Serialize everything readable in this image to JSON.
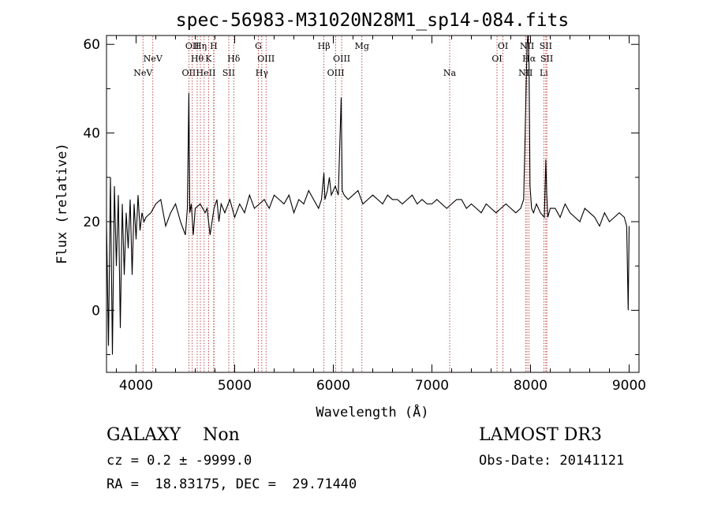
{
  "chart_data": {
    "type": "line",
    "title": "spec-56983-M31020N28M1_sp14-084.fits",
    "xlabel": "Wavelength (Å)",
    "ylabel": "Flux (relative)",
    "xlim": [
      3700,
      9100
    ],
    "ylim": [
      -14,
      62
    ],
    "xticks": [
      4000,
      5000,
      6000,
      7000,
      8000,
      9000
    ],
    "xtick_labels": [
      "4000",
      "5000",
      "6000",
      "7000",
      "8000",
      "9000"
    ],
    "yticks": [
      0,
      20,
      40,
      60
    ],
    "ytick_labels": [
      "0",
      "20",
      "40",
      "60"
    ],
    "grid": false,
    "series": [
      {
        "name": "spectrum",
        "x": [
          3700,
          3720,
          3740,
          3760,
          3780,
          3800,
          3820,
          3840,
          3860,
          3880,
          3900,
          3920,
          3940,
          3960,
          3980,
          4000,
          4020,
          4040,
          4060,
          4080,
          4100,
          4150,
          4200,
          4250,
          4300,
          4350,
          4400,
          4450,
          4500,
          4520,
          4535,
          4545,
          4560,
          4580,
          4600,
          4650,
          4700,
          4720,
          4750,
          4790,
          4820,
          4840,
          4862,
          4900,
          4950,
          5000,
          5050,
          5100,
          5150,
          5200,
          5250,
          5300,
          5350,
          5400,
          5450,
          5500,
          5550,
          5600,
          5650,
          5700,
          5750,
          5800,
          5850,
          5880,
          5905,
          5915,
          5940,
          5960,
          5980,
          6000,
          6020,
          6050,
          6080,
          6090,
          6110,
          6150,
          6200,
          6250,
          6300,
          6350,
          6400,
          6450,
          6500,
          6550,
          6600,
          6650,
          6700,
          6750,
          6800,
          6850,
          6900,
          6950,
          7000,
          7050,
          7100,
          7150,
          7200,
          7250,
          7300,
          7350,
          7400,
          7450,
          7500,
          7550,
          7600,
          7650,
          7700,
          7750,
          7800,
          7850,
          7900,
          7930,
          7950,
          7965,
          7975,
          7985,
          7995,
          8010,
          8030,
          8060,
          8100,
          8140,
          8155,
          8165,
          8175,
          8200,
          8250,
          8300,
          8350,
          8400,
          8450,
          8500,
          8550,
          8600,
          8650,
          8700,
          8750,
          8800,
          8850,
          8900,
          8950,
          8975,
          8990,
          9000
        ],
        "y": [
          20,
          -8,
          30,
          -10,
          28,
          10,
          26,
          -4,
          24,
          8,
          22,
          14,
          25,
          8,
          24,
          16,
          26,
          18,
          22,
          20,
          21,
          22,
          24,
          25,
          19,
          22,
          24,
          20,
          17,
          23,
          49,
          22,
          24,
          17,
          23,
          24,
          22,
          23,
          17,
          23,
          25,
          20,
          24,
          22,
          25,
          21,
          24,
          22,
          26,
          23,
          24,
          25,
          23,
          26,
          25,
          24,
          26,
          22,
          25,
          24,
          27,
          25,
          23,
          25,
          31,
          25,
          27,
          30,
          26,
          27,
          28,
          26,
          48,
          27,
          26,
          25,
          26,
          27,
          24,
          25,
          26,
          25,
          24,
          26,
          25,
          25,
          24,
          25,
          26,
          24,
          25,
          24,
          24,
          25,
          24,
          23,
          24,
          25,
          25,
          23,
          24,
          23,
          22,
          24,
          23,
          22,
          23,
          24,
          23,
          22,
          23,
          25,
          45,
          60,
          62,
          55,
          28,
          23,
          22,
          24,
          22,
          21,
          34,
          26,
          21,
          23,
          23,
          21,
          24,
          22,
          21,
          20,
          23,
          22,
          21,
          19,
          22,
          20,
          21,
          22,
          21,
          19,
          0,
          19
        ]
      }
    ],
    "lines": [
      {
        "wavelength": 4070,
        "label": "NeV",
        "row": 3
      },
      {
        "wavelength": 4170,
        "label": "NeV",
        "row": 2
      },
      {
        "wavelength": 4535,
        "label": "OII",
        "row": 3
      },
      {
        "wavelength": 4570,
        "label": "OII",
        "row": 1
      },
      {
        "wavelength": 4620,
        "label": "Hθ",
        "row": 2
      },
      {
        "wavelength": 4652,
        "label": "Hη",
        "row": 1
      },
      {
        "wavelength": 4690,
        "label": "HeI",
        "row": 3
      },
      {
        "wavelength": 4735,
        "label": "K",
        "row": 2
      },
      {
        "wavelength": 4787,
        "label": "H",
        "row": 1
      },
      {
        "wavelength": 4790,
        "label": "I",
        "row": 3
      },
      {
        "wavelength": 4940,
        "label": "SII",
        "row": 3
      },
      {
        "wavelength": 4990,
        "label": "Hδ",
        "row": 2
      },
      {
        "wavelength": 5240,
        "label": "G",
        "row": 1
      },
      {
        "wavelength": 5275,
        "label": "Hγ",
        "row": 3
      },
      {
        "wavelength": 5318,
        "label": "OIII",
        "row": 2
      },
      {
        "wavelength": 5905,
        "label": "Hβ",
        "row": 1
      },
      {
        "wavelength": 6025,
        "label": "OIII",
        "row": 3
      },
      {
        "wavelength": 6085,
        "label": "OIII",
        "row": 2
      },
      {
        "wavelength": 6290,
        "label": "Mg",
        "row": 1
      },
      {
        "wavelength": 7180,
        "label": "Na",
        "row": 3
      },
      {
        "wavelength": 7660,
        "label": "OI",
        "row": 2
      },
      {
        "wavelength": 7720,
        "label": "OI",
        "row": 1
      },
      {
        "wavelength": 7950,
        "label": "NII",
        "row": 3
      },
      {
        "wavelength": 7965,
        "label": "NII",
        "row": 1
      },
      {
        "wavelength": 7985,
        "label": "Hα",
        "row": 2
      },
      {
        "wavelength": 8135,
        "label": "Li",
        "row": 3
      },
      {
        "wavelength": 8155,
        "label": "SII",
        "row": 1
      },
      {
        "wavelength": 8165,
        "label": "SII",
        "row": 2
      }
    ]
  },
  "info": {
    "class_line": "GALAXY    Non",
    "cz_line": "cz = 0.2 ± -9999.0",
    "coords_line": "RA =  18.83175, DEC =  29.71440",
    "survey": "LAMOST DR3",
    "obs_date": "Obs-Date: 20141121"
  },
  "colors": {
    "spectrum": "#000000",
    "line_marker": "#b22222"
  }
}
